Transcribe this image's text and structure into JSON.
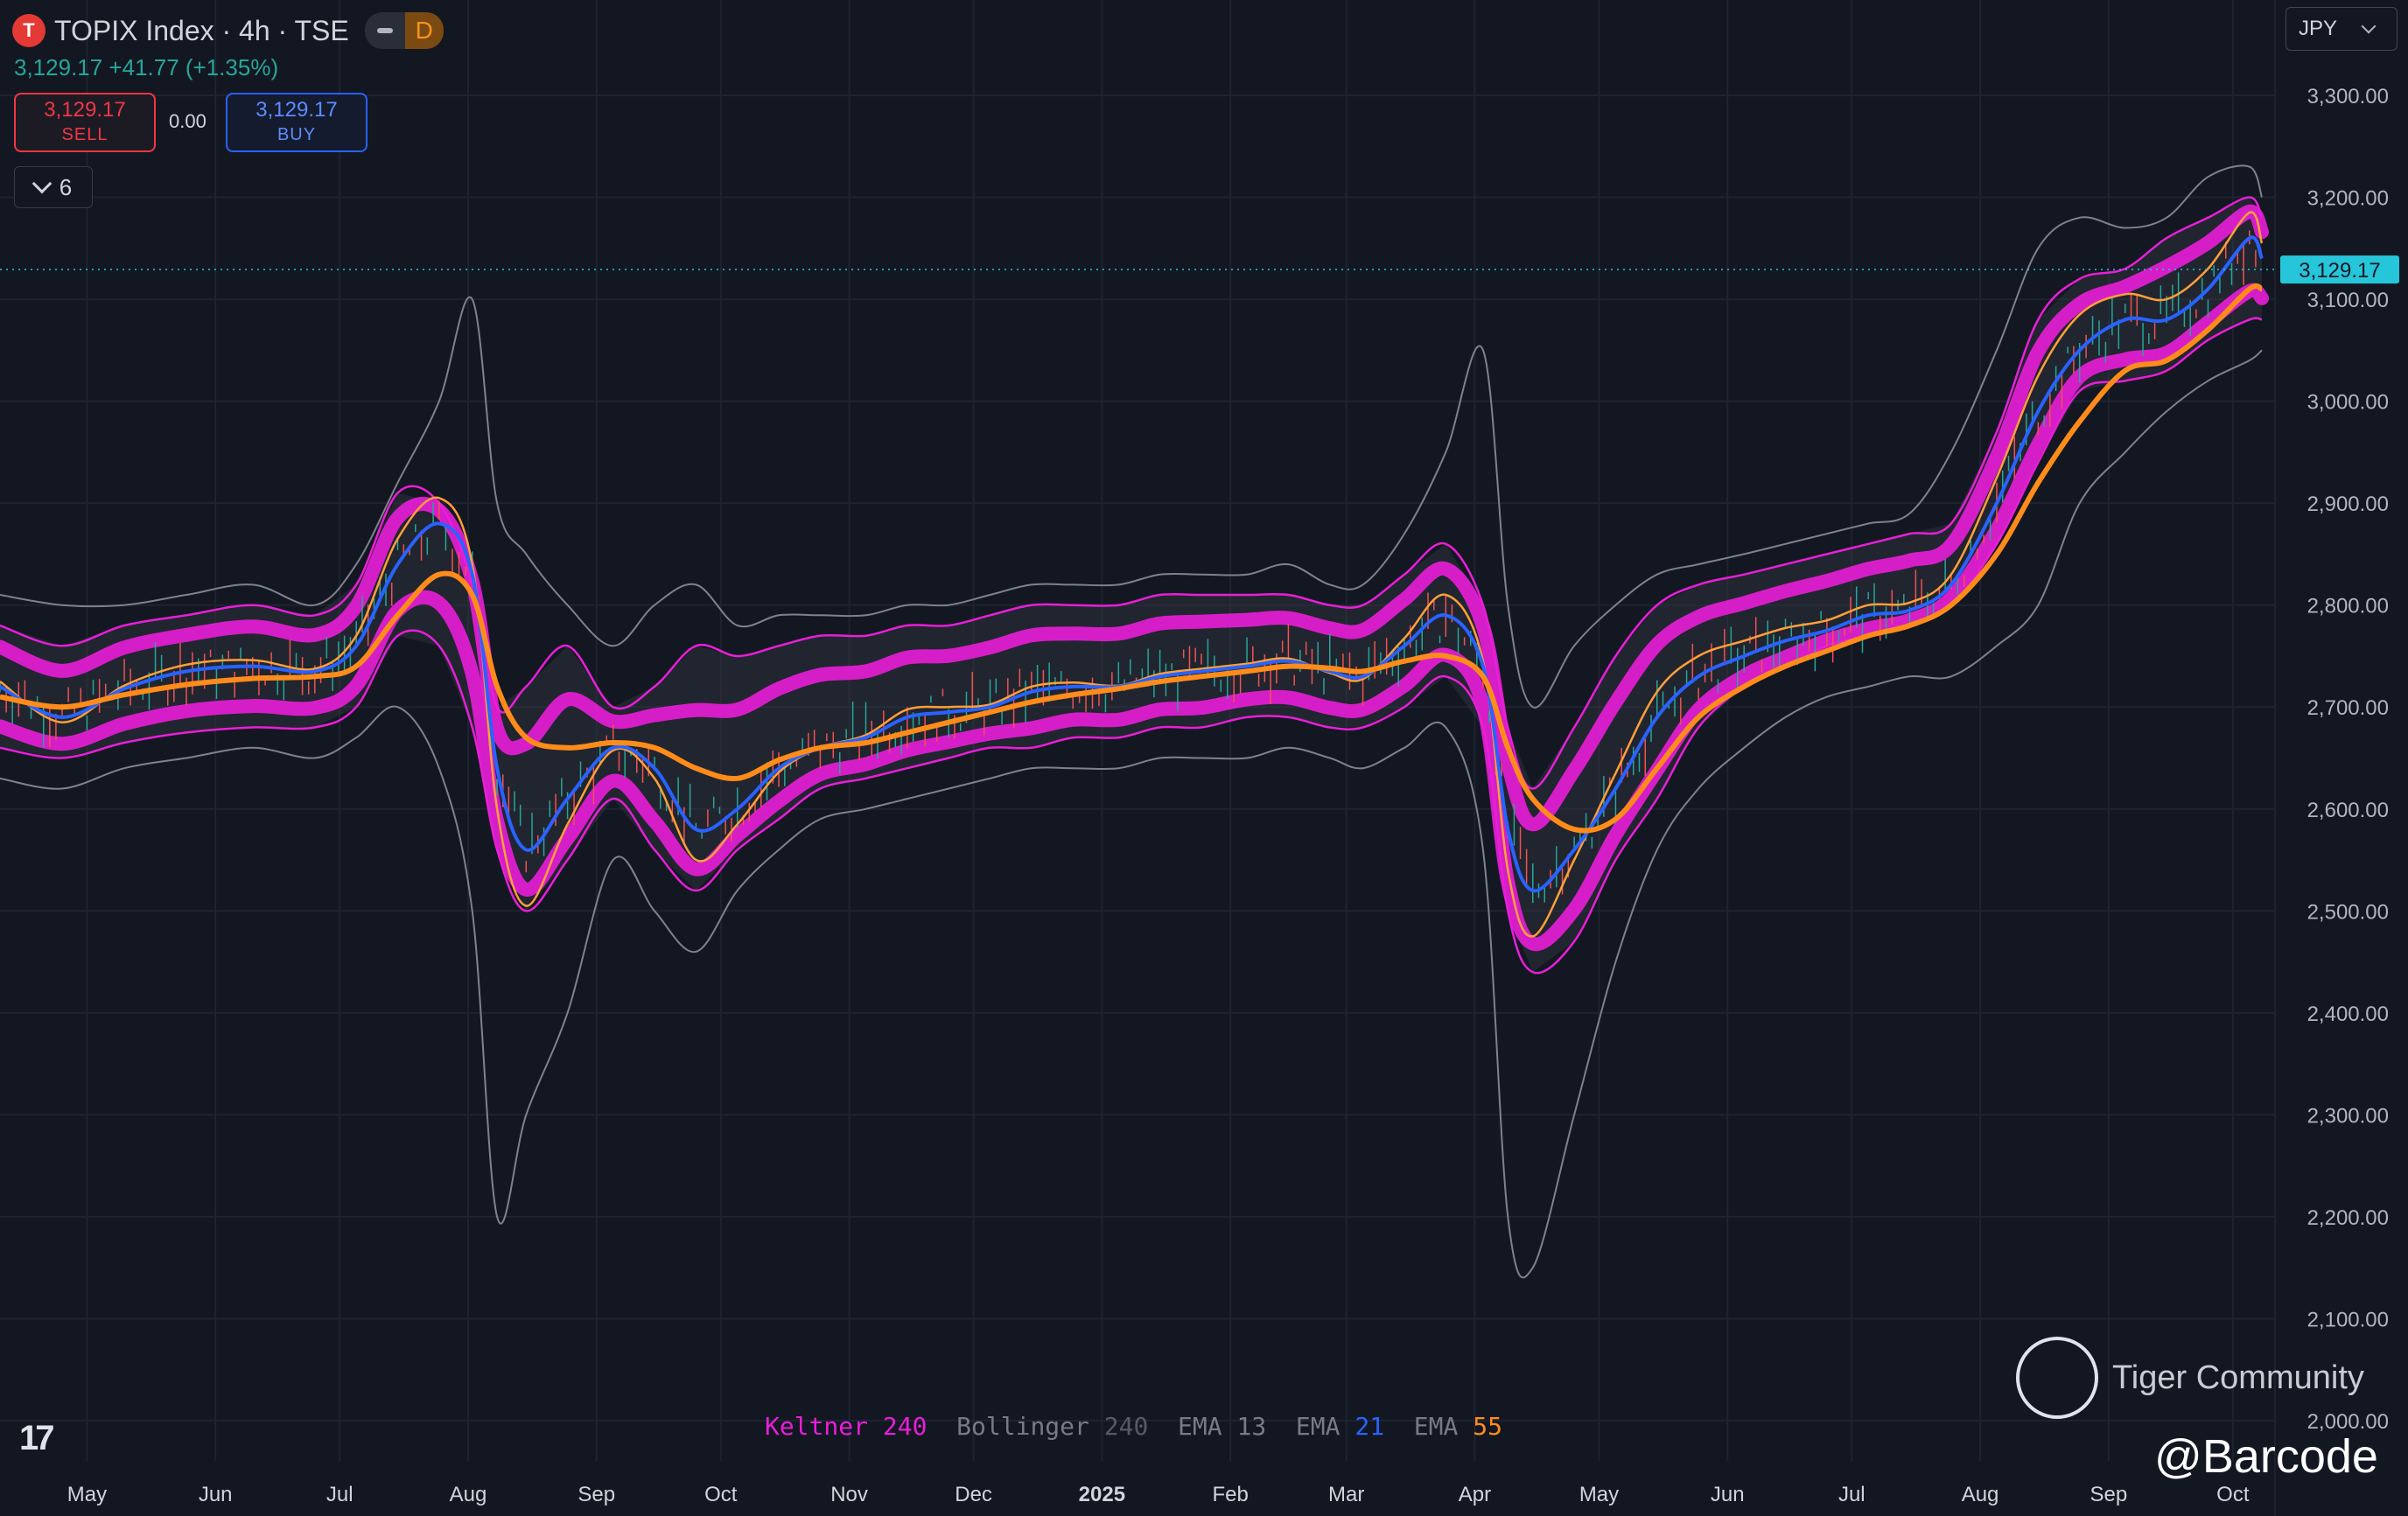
{
  "header": {
    "symbol_icon_letter": "T",
    "title": "TOPIX Index · 4h · TSE",
    "badge_d": "D",
    "quote": "3,129.17 +41.77 (+1.35%)",
    "sell_price": "3,129.17",
    "sell_label": "SELL",
    "spread": "0.00",
    "buy_price": "3,129.17",
    "buy_label": "BUY",
    "indicator_count": "6",
    "currency": "JPY"
  },
  "legend": [
    {
      "label": "Keltner",
      "value": "240",
      "color": "#e91ed8"
    },
    {
      "label": "Bollinger",
      "value": "240",
      "color": "#555b66"
    },
    {
      "label": "EMA",
      "value": "13",
      "color": "#787b86"
    },
    {
      "label": "EMA",
      "value": "21",
      "color": "#2962ff"
    },
    {
      "label": "EMA",
      "value": "55",
      "color": "#ff8c1a"
    }
  ],
  "watermark": {
    "brand": "Tiger Community",
    "handle": "@Barcode"
  },
  "colors": {
    "background": "#131722",
    "grid": "#1f2330",
    "keltner": "#e91ed8",
    "bollinger_band": "#4a4d55",
    "ema13": "#ff9f3a",
    "ema21": "#2962ff",
    "ema55": "#ff8c1a",
    "up": "#26a69a",
    "down": "#ef5350",
    "last_price": "#26c6da"
  },
  "chart_data": {
    "type": "line",
    "ylim": [
      2000,
      3300
    ],
    "y_ticks": [
      "2,000.00",
      "2,100.00",
      "2,200.00",
      "2,300.00",
      "2,400.00",
      "2,500.00",
      "2,600.00",
      "2,700.00",
      "2,800.00",
      "2,900.00",
      "3,000.00",
      "3,100.00",
      "3,200.00",
      "3,300.00"
    ],
    "x_ticks": [
      "May",
      "Jun",
      "Jul",
      "Aug",
      "Sep",
      "Oct",
      "Nov",
      "Dec",
      "2025",
      "Feb",
      "Mar",
      "Apr",
      "May",
      "Jun",
      "Jul",
      "Aug",
      "Sep",
      "Oct"
    ],
    "last_price": 3129.17,
    "last_price_label": "3,129.17",
    "x": [
      "2024-04-10",
      "2024-04-25",
      "2024-05-10",
      "2024-05-25",
      "2024-06-10",
      "2024-06-25",
      "2024-07-05",
      "2024-07-15",
      "2024-07-25",
      "2024-08-02",
      "2024-08-08",
      "2024-08-15",
      "2024-08-25",
      "2024-09-05",
      "2024-09-15",
      "2024-09-25",
      "2024-10-05",
      "2024-10-15",
      "2024-10-25",
      "2024-11-05",
      "2024-11-15",
      "2024-11-25",
      "2024-12-05",
      "2024-12-15",
      "2024-12-25",
      "2025-01-05",
      "2025-01-15",
      "2025-01-25",
      "2025-02-05",
      "2025-02-15",
      "2025-02-25",
      "2025-03-05",
      "2025-03-15",
      "2025-03-25",
      "2025-04-03",
      "2025-04-09",
      "2025-04-15",
      "2025-04-25",
      "2025-05-05",
      "2025-05-15",
      "2025-05-25",
      "2025-06-05",
      "2025-06-15",
      "2025-06-25",
      "2025-07-05",
      "2025-07-15",
      "2025-07-25",
      "2025-08-05",
      "2025-08-15",
      "2025-08-25",
      "2025-09-05",
      "2025-09-15",
      "2025-09-25",
      "2025-10-05",
      "2025-10-08"
    ],
    "series": [
      {
        "name": "EMA 55",
        "values": [
          2710,
          2700,
          2712,
          2722,
          2728,
          2730,
          2740,
          2790,
          2830,
          2810,
          2720,
          2670,
          2660,
          2665,
          2660,
          2640,
          2630,
          2648,
          2660,
          2665,
          2675,
          2685,
          2695,
          2705,
          2712,
          2718,
          2725,
          2730,
          2735,
          2740,
          2738,
          2735,
          2745,
          2750,
          2730,
          2660,
          2610,
          2580,
          2590,
          2640,
          2690,
          2720,
          2740,
          2755,
          2770,
          2780,
          2800,
          2850,
          2920,
          2980,
          3030,
          3040,
          3070,
          3110,
          3110
        ]
      },
      {
        "name": "EMA 21",
        "values": [
          2720,
          2690,
          2718,
          2735,
          2740,
          2735,
          2760,
          2840,
          2880,
          2830,
          2640,
          2560,
          2610,
          2660,
          2640,
          2580,
          2600,
          2640,
          2660,
          2670,
          2690,
          2695,
          2700,
          2715,
          2720,
          2720,
          2730,
          2735,
          2740,
          2745,
          2735,
          2730,
          2760,
          2790,
          2740,
          2580,
          2520,
          2560,
          2620,
          2690,
          2730,
          2750,
          2765,
          2775,
          2790,
          2795,
          2820,
          2900,
          2990,
          3050,
          3080,
          3080,
          3110,
          3160,
          3140
        ]
      },
      {
        "name": "Keltner upper",
        "values": [
          2780,
          2760,
          2780,
          2790,
          2800,
          2790,
          2820,
          2910,
          2900,
          2820,
          2700,
          2720,
          2760,
          2700,
          2720,
          2760,
          2750,
          2760,
          2770,
          2770,
          2780,
          2780,
          2790,
          2800,
          2800,
          2800,
          2810,
          2810,
          2810,
          2810,
          2800,
          2800,
          2830,
          2860,
          2800,
          2680,
          2620,
          2680,
          2750,
          2800,
          2820,
          2830,
          2840,
          2850,
          2860,
          2870,
          2880,
          2970,
          3080,
          3120,
          3130,
          3160,
          3180,
          3200,
          3180
        ]
      },
      {
        "name": "Keltner lower",
        "values": [
          2660,
          2650,
          2665,
          2675,
          2680,
          2680,
          2700,
          2770,
          2760,
          2680,
          2560,
          2500,
          2550,
          2610,
          2560,
          2520,
          2560,
          2590,
          2620,
          2630,
          2640,
          2650,
          2660,
          2660,
          2670,
          2670,
          2680,
          2680,
          2690,
          2690,
          2680,
          2680,
          2700,
          2730,
          2680,
          2500,
          2440,
          2470,
          2550,
          2610,
          2680,
          2720,
          2740,
          2760,
          2770,
          2780,
          2800,
          2860,
          2940,
          3010,
          3020,
          3030,
          3060,
          3080,
          3080
        ]
      },
      {
        "name": "Bollinger upper",
        "values": [
          2810,
          2800,
          2800,
          2810,
          2820,
          2800,
          2840,
          2920,
          3000,
          3100,
          2900,
          2850,
          2800,
          2760,
          2800,
          2820,
          2780,
          2790,
          2790,
          2790,
          2800,
          2800,
          2810,
          2820,
          2820,
          2820,
          2830,
          2830,
          2830,
          2840,
          2820,
          2820,
          2870,
          2950,
          3050,
          2800,
          2700,
          2760,
          2800,
          2830,
          2840,
          2850,
          2860,
          2870,
          2880,
          2890,
          2950,
          3050,
          3150,
          3180,
          3170,
          3180,
          3220,
          3230,
          3200
        ]
      },
      {
        "name": "Bollinger lower",
        "values": [
          2630,
          2620,
          2640,
          2650,
          2660,
          2650,
          2670,
          2700,
          2640,
          2500,
          2200,
          2300,
          2400,
          2550,
          2500,
          2460,
          2520,
          2560,
          2590,
          2600,
          2610,
          2620,
          2630,
          2640,
          2640,
          2640,
          2650,
          2650,
          2650,
          2660,
          2650,
          2640,
          2660,
          2680,
          2560,
          2200,
          2150,
          2300,
          2450,
          2560,
          2620,
          2660,
          2690,
          2710,
          2720,
          2730,
          2730,
          2760,
          2800,
          2900,
          2950,
          2990,
          3020,
          3040,
          3050
        ]
      }
    ]
  }
}
